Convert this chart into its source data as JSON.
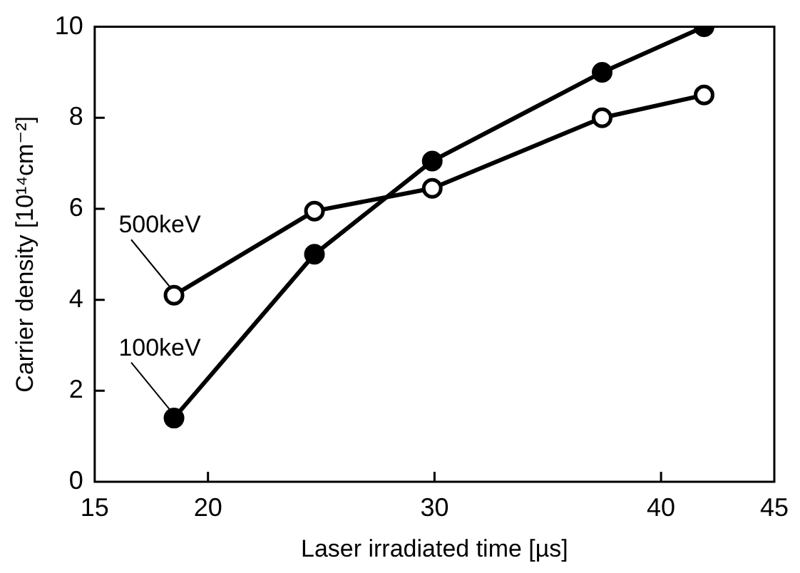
{
  "chart_data": {
    "type": "line",
    "xlabel": "Laser irradiated time [µs]",
    "ylabel": "Carrier density [10¹⁴cm⁻²]",
    "xlim": [
      15,
      45
    ],
    "xticks": [
      15,
      20,
      30,
      40,
      45
    ],
    "ylim": [
      0,
      10
    ],
    "yticks": [
      0,
      2,
      4,
      6,
      8,
      10
    ],
    "grid": false,
    "legend": false,
    "marker": "circle",
    "line_style": "solid",
    "series": [
      {
        "name": "100keV",
        "color": "#000000",
        "x": [
          18.5,
          24.7,
          29.9,
          37.4,
          41.9
        ],
        "values": [
          1.4,
          5.0,
          7.05,
          9.0,
          10.0
        ]
      },
      {
        "name": "500keV",
        "color": "#000000",
        "colors": [
          "#ffffff",
          "#ffffff",
          "#ffffff",
          "#ffffff",
          "#ffffff"
        ],
        "x": [
          18.5,
          24.7,
          29.9,
          37.4,
          41.9
        ],
        "values": [
          4.1,
          5.95,
          6.45,
          8.0,
          8.5
        ]
      }
    ]
  }
}
